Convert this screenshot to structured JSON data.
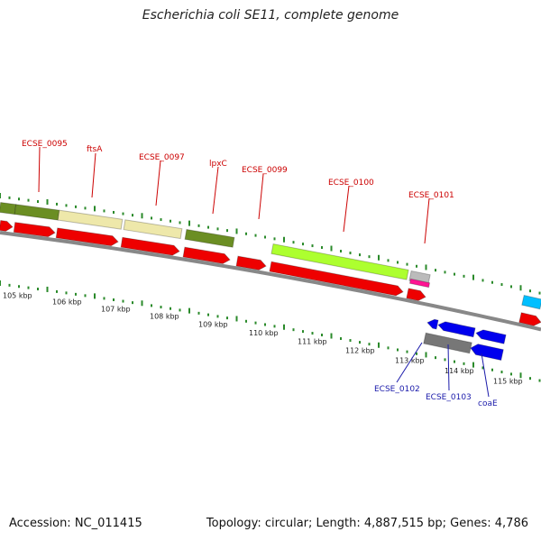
{
  "title": "Escherichia coli SE11, complete genome",
  "footer": {
    "accession": "Accession: NC_011415",
    "summary": "Topology: circular; Length: 4,887,515 bp; Genes: 4,786"
  },
  "colors": {
    "forward_gene_label": "#cc0000",
    "reverse_gene_label": "#1a1aaa",
    "cds": "#ee0000",
    "backbone": "#888888",
    "tick": "#2a8a2a"
  },
  "kbp_labels": [
    "105 kbp",
    "106 kbp",
    "107 kbp",
    "108 kbp",
    "109 kbp",
    "110 kbp",
    "111 kbp",
    "112 kbp",
    "113 kbp",
    "114 kbp",
    "115 kbp"
  ],
  "forward_gene_labels": [
    "ECSE_0095",
    "ftsA",
    "ECSE_0097",
    "lpxC",
    "ECSE_0099",
    "ECSE_0100",
    "ECSE_0101"
  ],
  "reverse_gene_labels": [
    "ECSE_0102",
    "ECSE_0103",
    "coaE"
  ],
  "feature_colors": {
    "olive": "#6b8e23",
    "khaki": "#eee8aa",
    "lime": "#adff2f",
    "magenta": "#ff1493",
    "gray": "#777777",
    "blue": "#0000ee",
    "cyan": "#00bfff"
  }
}
